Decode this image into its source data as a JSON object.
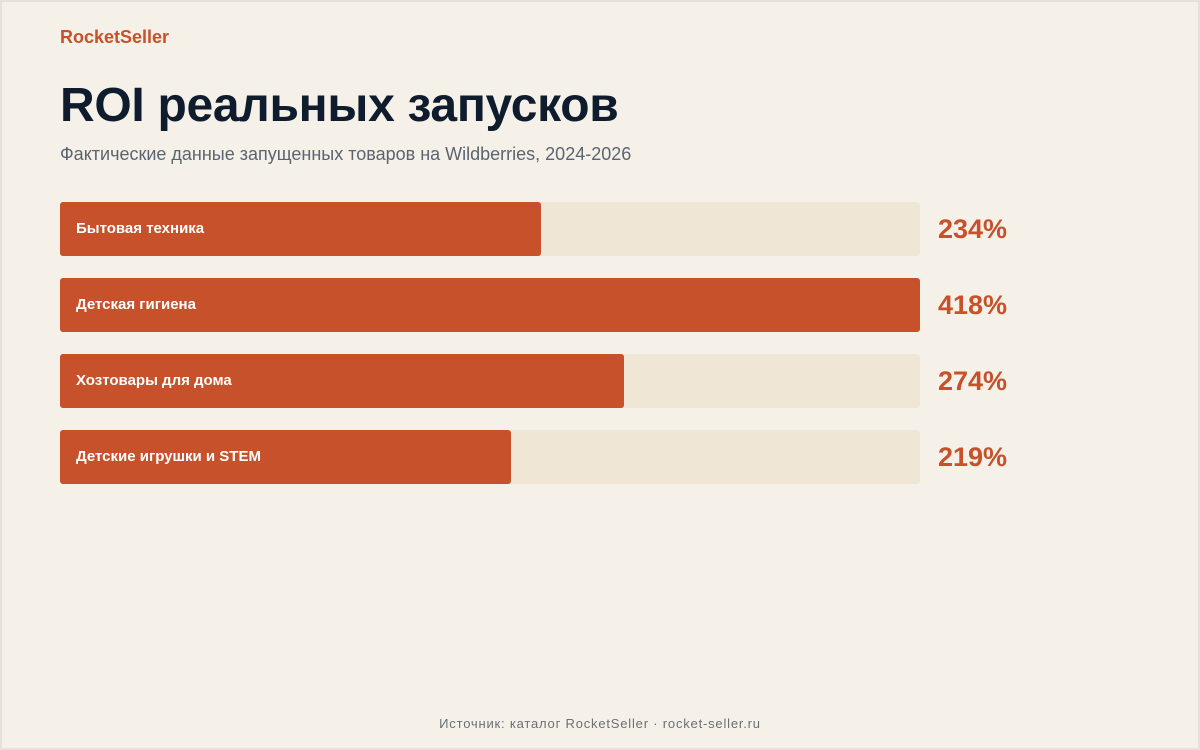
{
  "brand": "RocketSeller",
  "title": "ROI реальных запусков",
  "subtitle": "Фактические данные запущенных товаров на Wildberries, 2024-2026",
  "footer": "Источник: каталог RocketSeller · rocket-seller.ru",
  "colors": {
    "accent": "#c6512a",
    "track": "#efe6d5",
    "background": "#f5f1e8",
    "title": "#0f1c2e"
  },
  "chart_data": {
    "type": "bar",
    "orientation": "horizontal",
    "categories": [
      "Бытовая техника",
      "Детская гигиена",
      "Хозтовары для дома",
      "Детские игрушки и STEM"
    ],
    "values": [
      234,
      418,
      274,
      219
    ],
    "value_labels": [
      "234%",
      "418%",
      "274%",
      "219%"
    ],
    "unit": "%",
    "xlim": [
      0,
      418
    ],
    "grid": false,
    "legend": "none"
  }
}
